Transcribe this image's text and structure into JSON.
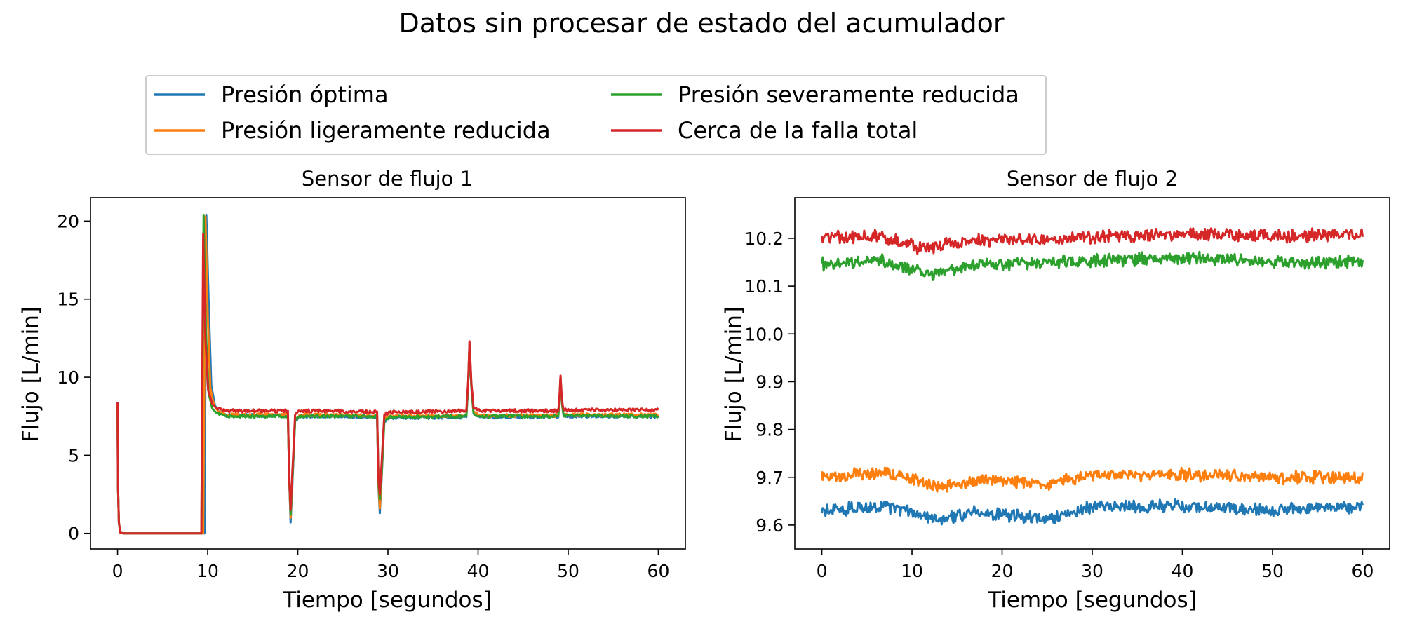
{
  "figure": {
    "title": "Datos sin procesar de estado del acumulador"
  },
  "colors": {
    "blue": "#1f77b4",
    "orange": "#ff7f0e",
    "green": "#2ca02c",
    "red": "#d62728",
    "legend_border": "#cccccc"
  },
  "chart_data": [
    {
      "type": "line",
      "title": "Sensor de flujo 1",
      "xlabel": "Tiempo [segundos]",
      "ylabel": "Flujo [L/min]",
      "xlim": [
        -3,
        63
      ],
      "ylim": [
        -1,
        21.5
      ],
      "xticks": [
        0,
        10,
        20,
        30,
        40,
        50,
        60
      ],
      "xtick_labels": [
        "0",
        "10",
        "20",
        "30",
        "40",
        "50",
        "60"
      ],
      "yticks": [
        0,
        5,
        10,
        15,
        20
      ],
      "ytick_labels": [
        "0",
        "5",
        "10",
        "15",
        "20"
      ],
      "legend_position": "above-left",
      "series": [
        {
          "name": "Presión óptima",
          "color": "#1f77b4",
          "points": [
            [
              0,
              8.4
            ],
            [
              0.05,
              3.0
            ],
            [
              0.15,
              0.7
            ],
            [
              0.3,
              0.05
            ],
            [
              0.6,
              0
            ],
            [
              9.65,
              0
            ],
            [
              9.85,
              20.4
            ],
            [
              10.1,
              15.0
            ],
            [
              10.4,
              9.5
            ],
            [
              10.8,
              8.2
            ],
            [
              11.3,
              7.75
            ],
            [
              12,
              7.55
            ],
            [
              18.9,
              7.55
            ],
            [
              19.05,
              3.5
            ],
            [
              19.2,
              0.7
            ],
            [
              19.4,
              3.2
            ],
            [
              19.7,
              7.2
            ],
            [
              20.2,
              7.5
            ],
            [
              28.8,
              7.45
            ],
            [
              28.95,
              3.0
            ],
            [
              29.1,
              1.3
            ],
            [
              29.3,
              3.5
            ],
            [
              29.6,
              7.2
            ],
            [
              30.2,
              7.4
            ],
            [
              38.7,
              7.45
            ],
            [
              38.9,
              9.5
            ],
            [
              39.05,
              12.2
            ],
            [
              39.25,
              9.5
            ],
            [
              39.5,
              7.7
            ],
            [
              40.2,
              7.45
            ],
            [
              48.9,
              7.45
            ],
            [
              49.05,
              8.8
            ],
            [
              49.15,
              10.0
            ],
            [
              49.3,
              8.4
            ],
            [
              49.5,
              7.5
            ],
            [
              60,
              7.5
            ]
          ],
          "noise": 0.09
        },
        {
          "name": "Presión ligeramente reducida",
          "color": "#ff7f0e",
          "points": [
            [
              0,
              8.4
            ],
            [
              0.05,
              3.0
            ],
            [
              0.15,
              0.7
            ],
            [
              0.3,
              0.05
            ],
            [
              0.6,
              0
            ],
            [
              9.5,
              0
            ],
            [
              9.75,
              20.3
            ],
            [
              10.0,
              14.0
            ],
            [
              10.3,
              9.3
            ],
            [
              10.7,
              8.2
            ],
            [
              11.2,
              7.8
            ],
            [
              12,
              7.6
            ],
            [
              18.9,
              7.6
            ],
            [
              19.05,
              3.5
            ],
            [
              19.2,
              1.0
            ],
            [
              19.4,
              3.5
            ],
            [
              19.7,
              7.3
            ],
            [
              20.2,
              7.6
            ],
            [
              28.8,
              7.55
            ],
            [
              28.95,
              3.2
            ],
            [
              29.1,
              1.6
            ],
            [
              29.3,
              3.8
            ],
            [
              29.6,
              7.3
            ],
            [
              30.2,
              7.5
            ],
            [
              38.7,
              7.55
            ],
            [
              38.9,
              9.5
            ],
            [
              39.05,
              12.1
            ],
            [
              39.25,
              9.5
            ],
            [
              39.5,
              7.8
            ],
            [
              40.2,
              7.55
            ],
            [
              48.9,
              7.55
            ],
            [
              49.05,
              8.8
            ],
            [
              49.15,
              10.0
            ],
            [
              49.3,
              8.4
            ],
            [
              49.5,
              7.6
            ],
            [
              60,
              7.6
            ]
          ],
          "noise": 0.09
        },
        {
          "name": "Presión severamente reducida",
          "color": "#2ca02c",
          "points": [
            [
              0,
              8.4
            ],
            [
              0.05,
              3.0
            ],
            [
              0.15,
              0.7
            ],
            [
              0.3,
              0.05
            ],
            [
              0.6,
              0
            ],
            [
              9.3,
              0
            ],
            [
              9.55,
              20.4
            ],
            [
              9.8,
              13.0
            ],
            [
              10.1,
              9.0
            ],
            [
              10.5,
              8.0
            ],
            [
              11.0,
              7.7
            ],
            [
              12,
              7.5
            ],
            [
              18.9,
              7.5
            ],
            [
              19.05,
              3.5
            ],
            [
              19.2,
              1.2
            ],
            [
              19.4,
              3.6
            ],
            [
              19.7,
              7.2
            ],
            [
              20.2,
              7.5
            ],
            [
              28.8,
              7.5
            ],
            [
              28.95,
              3.3
            ],
            [
              29.1,
              2.2
            ],
            [
              29.3,
              4.0
            ],
            [
              29.6,
              7.2
            ],
            [
              30.2,
              7.45
            ],
            [
              38.7,
              7.5
            ],
            [
              38.9,
              9.5
            ],
            [
              39.05,
              12.0
            ],
            [
              39.25,
              9.5
            ],
            [
              39.5,
              7.7
            ],
            [
              40.2,
              7.5
            ],
            [
              48.9,
              7.5
            ],
            [
              49.05,
              8.8
            ],
            [
              49.15,
              10.0
            ],
            [
              49.3,
              8.4
            ],
            [
              49.5,
              7.55
            ],
            [
              60,
              7.5
            ]
          ],
          "noise": 0.09
        },
        {
          "name": "Cerca de la falla total",
          "color": "#d62728",
          "points": [
            [
              0,
              8.4
            ],
            [
              0.05,
              3.0
            ],
            [
              0.15,
              0.7
            ],
            [
              0.3,
              0.05
            ],
            [
              0.6,
              0
            ],
            [
              9.3,
              0
            ],
            [
              9.5,
              19.2
            ],
            [
              9.75,
              12.5
            ],
            [
              10.05,
              9.2
            ],
            [
              10.5,
              8.3
            ],
            [
              11.0,
              8.0
            ],
            [
              12,
              7.85
            ],
            [
              18.9,
              7.85
            ],
            [
              19.05,
              3.5
            ],
            [
              19.2,
              1.5
            ],
            [
              19.4,
              4.0
            ],
            [
              19.7,
              7.6
            ],
            [
              20.2,
              7.85
            ],
            [
              28.8,
              7.8
            ],
            [
              28.95,
              3.5
            ],
            [
              29.1,
              2.5
            ],
            [
              29.3,
              4.5
            ],
            [
              29.6,
              7.6
            ],
            [
              30.2,
              7.75
            ],
            [
              38.7,
              7.85
            ],
            [
              38.9,
              9.7
            ],
            [
              39.05,
              12.3
            ],
            [
              39.25,
              9.7
            ],
            [
              39.5,
              8.0
            ],
            [
              40.2,
              7.85
            ],
            [
              48.9,
              7.85
            ],
            [
              49.05,
              8.9
            ],
            [
              49.15,
              10.1
            ],
            [
              49.3,
              8.6
            ],
            [
              49.5,
              7.9
            ],
            [
              60,
              7.9
            ]
          ],
          "noise": 0.1
        }
      ]
    },
    {
      "type": "line",
      "title": "Sensor de flujo 2",
      "xlabel": "Tiempo [segundos]",
      "ylabel": "Flujo [L/min]",
      "xlim": [
        -3,
        63
      ],
      "ylim": [
        9.55,
        10.285
      ],
      "xticks": [
        0,
        10,
        20,
        30,
        40,
        50,
        60
      ],
      "xtick_labels": [
        "0",
        "10",
        "20",
        "30",
        "40",
        "50",
        "60"
      ],
      "yticks": [
        9.6,
        9.7,
        9.8,
        9.9,
        10.0,
        10.1,
        10.2
      ],
      "ytick_labels": [
        "9.6",
        "9.7",
        "9.8",
        "9.9",
        "10.0",
        "10.1",
        "10.2"
      ],
      "series": [
        {
          "name": "Presión óptima",
          "color": "#1f77b4",
          "base": [
            [
              0,
              9.63
            ],
            [
              7,
              9.64
            ],
            [
              13,
              9.61
            ],
            [
              17,
              9.63
            ],
            [
              25,
              9.61
            ],
            [
              30,
              9.64
            ],
            [
              40,
              9.64
            ],
            [
              50,
              9.63
            ],
            [
              60,
              9.64
            ]
          ],
          "noise": 0.011
        },
        {
          "name": "Presión ligeramente reducida",
          "color": "#ff7f0e",
          "base": [
            [
              0,
              9.7
            ],
            [
              7,
              9.71
            ],
            [
              13,
              9.68
            ],
            [
              18,
              9.695
            ],
            [
              25,
              9.685
            ],
            [
              30,
              9.705
            ],
            [
              40,
              9.705
            ],
            [
              50,
              9.7
            ],
            [
              60,
              9.7
            ]
          ],
          "noise": 0.011
        },
        {
          "name": "Presión severamente reducida",
          "color": "#2ca02c",
          "base": [
            [
              0,
              10.145
            ],
            [
              6,
              10.155
            ],
            [
              12,
              10.125
            ],
            [
              18,
              10.145
            ],
            [
              25,
              10.15
            ],
            [
              33,
              10.155
            ],
            [
              42,
              10.16
            ],
            [
              50,
              10.15
            ],
            [
              60,
              10.15
            ]
          ],
          "noise": 0.011
        },
        {
          "name": "Cerca de la falla total",
          "color": "#d62728",
          "base": [
            [
              0,
              10.2
            ],
            [
              6,
              10.205
            ],
            [
              11,
              10.18
            ],
            [
              17,
              10.195
            ],
            [
              25,
              10.2
            ],
            [
              33,
              10.205
            ],
            [
              42,
              10.21
            ],
            [
              50,
              10.205
            ],
            [
              60,
              10.21
            ]
          ],
          "noise": 0.011
        }
      ]
    }
  ]
}
